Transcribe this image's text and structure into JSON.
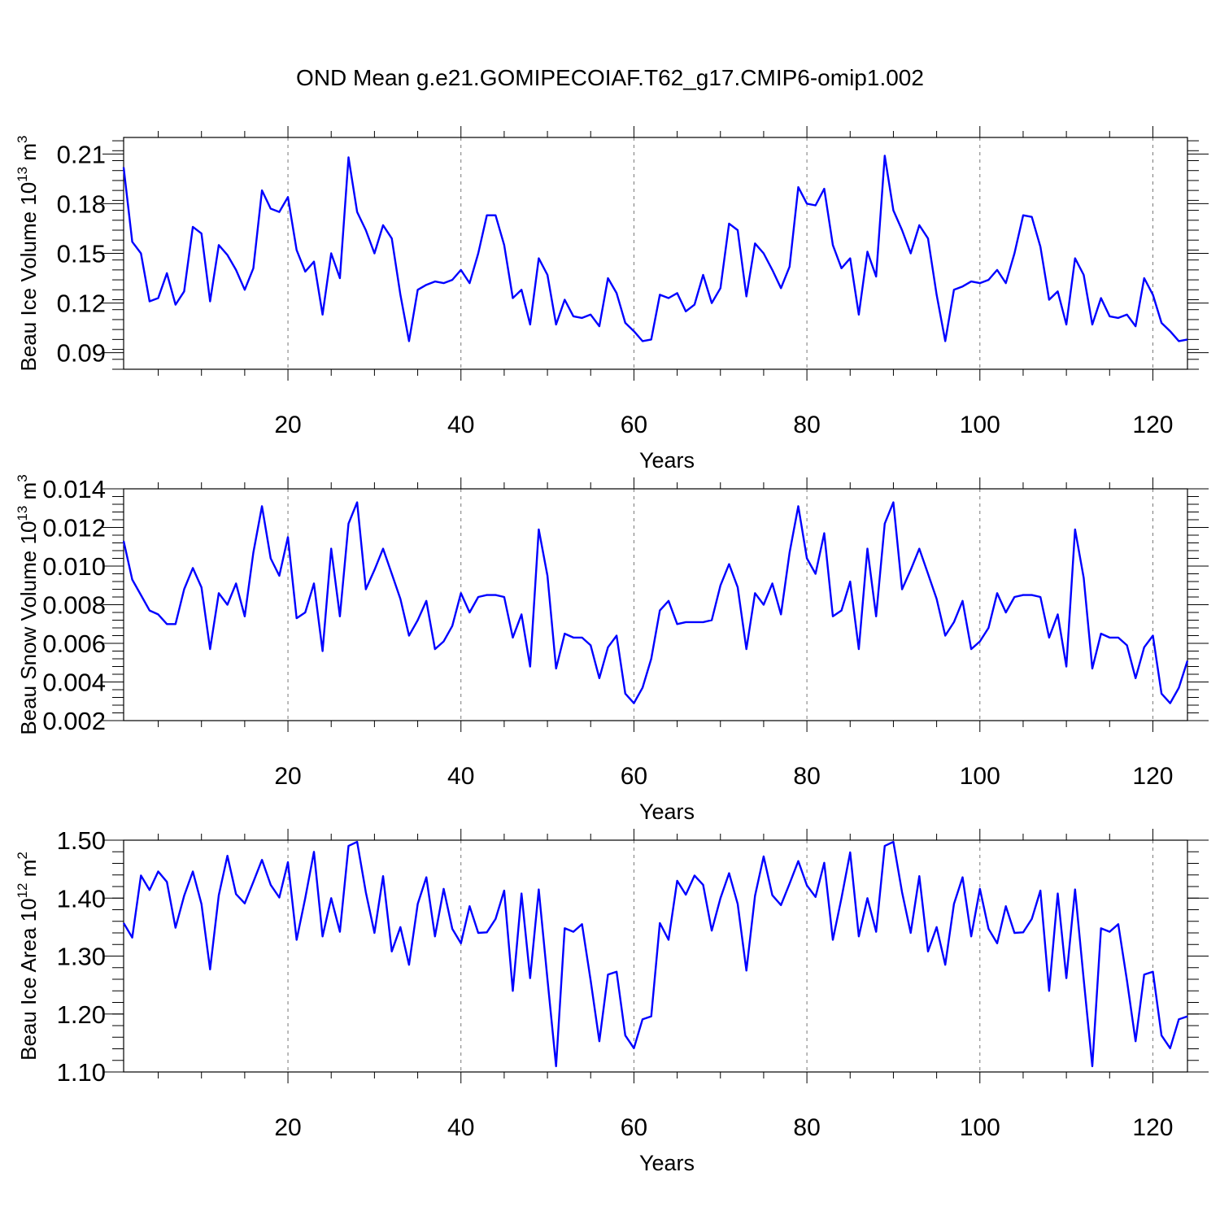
{
  "title": "OND Mean g.e21.GOMIPECOIAF.T62_g17.CMIP6-omip1.002",
  "line_color": "#0000ff",
  "chart_data": [
    {
      "type": "line",
      "name": "ice-volume",
      "ylabel_main": "Beau Ice Volume 10",
      "ylabel_exp": "13",
      "ylabel_unit": "m",
      "ylabel_unit_exp": "3",
      "xlabel": "Years",
      "xlim": [
        1,
        124
      ],
      "ylim": [
        0.08,
        0.22
      ],
      "xticks": [
        20,
        40,
        60,
        80,
        100,
        120
      ],
      "xtick_labels": [
        "20",
        "40",
        "60",
        "80",
        "100",
        "120"
      ],
      "yticks": [
        0.09,
        0.12,
        0.15,
        0.18,
        0.21
      ],
      "ytick_labels": [
        "0.09",
        "0.12",
        "0.15",
        "0.18",
        "0.21"
      ],
      "grid": "vertical dashed at major x ticks",
      "x_start": 1,
      "values": [
        0.202,
        0.157,
        0.15,
        0.121,
        0.123,
        0.138,
        0.119,
        0.127,
        0.166,
        0.162,
        0.121,
        0.155,
        0.149,
        0.14,
        0.128,
        0.141,
        0.188,
        0.177,
        0.175,
        0.184,
        0.152,
        0.139,
        0.145,
        0.113,
        0.15,
        0.135,
        0.208,
        0.175,
        0.164,
        0.15,
        0.167,
        0.159,
        0.125,
        0.097,
        0.128,
        0.131,
        0.133,
        0.132,
        0.134,
        0.14,
        0.132,
        0.15,
        0.173,
        0.173,
        0.155,
        0.123,
        0.128,
        0.107,
        0.147,
        0.137,
        0.107,
        0.122,
        0.112,
        0.111,
        0.113,
        0.106,
        0.135,
        0.126,
        0.108,
        0.103,
        0.097,
        0.098,
        0.125,
        0.123,
        0.126,
        0.115,
        0.119,
        0.137,
        0.12,
        0.129,
        0.168,
        0.164,
        0.124,
        0.156,
        0.15,
        0.14,
        0.129,
        0.142,
        0.19,
        0.18,
        0.179,
        0.189,
        0.155,
        0.141,
        0.147,
        0.113,
        0.151,
        0.136,
        0.209,
        0.176,
        0.164,
        0.15,
        0.167,
        0.159,
        0.125,
        0.097,
        0.128,
        0.13,
        0.133,
        0.132,
        0.134,
        0.14,
        0.132,
        0.15,
        0.173,
        0.172,
        0.154,
        0.122,
        0.127,
        0.107,
        0.147,
        0.137,
        0.107,
        0.123,
        0.112,
        0.111,
        0.113,
        0.106,
        0.135,
        0.125,
        0.108,
        0.103,
        0.097,
        0.098
      ]
    },
    {
      "type": "line",
      "name": "snow-volume",
      "ylabel_main": "Beau Snow Volume 10",
      "ylabel_exp": "13",
      "ylabel_unit": "m",
      "ylabel_unit_exp": "3",
      "xlabel": "Years",
      "xlim": [
        1,
        124
      ],
      "ylim": [
        0.002,
        0.014
      ],
      "xticks": [
        20,
        40,
        60,
        80,
        100,
        120
      ],
      "xtick_labels": [
        "20",
        "40",
        "60",
        "80",
        "100",
        "120"
      ],
      "yticks": [
        0.002,
        0.004,
        0.006,
        0.008,
        0.01,
        0.012,
        0.014
      ],
      "ytick_labels": [
        "0.002",
        "0.004",
        "0.006",
        "0.008",
        "0.010",
        "0.012",
        "0.014"
      ],
      "grid": "vertical dashed at major x ticks",
      "x_start": 1,
      "values": [
        0.0113,
        0.0093,
        0.0085,
        0.0077,
        0.0075,
        0.007,
        0.007,
        0.0088,
        0.0099,
        0.0089,
        0.0057,
        0.0086,
        0.008,
        0.0091,
        0.0074,
        0.0107,
        0.0131,
        0.0104,
        0.0095,
        0.0115,
        0.0073,
        0.0076,
        0.0091,
        0.0056,
        0.0109,
        0.0074,
        0.0122,
        0.0133,
        0.0088,
        0.0098,
        0.0109,
        0.0096,
        0.0083,
        0.0064,
        0.0072,
        0.0082,
        0.0057,
        0.0061,
        0.0069,
        0.0086,
        0.0076,
        0.0084,
        0.0085,
        0.0085,
        0.0084,
        0.0063,
        0.0075,
        0.0048,
        0.0119,
        0.0095,
        0.0047,
        0.0065,
        0.0063,
        0.0063,
        0.0059,
        0.0042,
        0.0058,
        0.0064,
        0.0034,
        0.0029,
        0.0037,
        0.0052,
        0.0077,
        0.0082,
        0.007,
        0.0071,
        0.0071,
        0.0071,
        0.0072,
        0.009,
        0.0101,
        0.0089,
        0.0057,
        0.0086,
        0.008,
        0.0091,
        0.0075,
        0.0107,
        0.0131,
        0.0104,
        0.0096,
        0.0117,
        0.0074,
        0.0077,
        0.0092,
        0.0057,
        0.0109,
        0.0074,
        0.0122,
        0.0133,
        0.0088,
        0.0098,
        0.0109,
        0.0096,
        0.0083,
        0.0064,
        0.0071,
        0.0082,
        0.0057,
        0.0061,
        0.0068,
        0.0086,
        0.0076,
        0.0084,
        0.0085,
        0.0085,
        0.0084,
        0.0063,
        0.0075,
        0.0048,
        0.0119,
        0.0094,
        0.0047,
        0.0065,
        0.0063,
        0.0063,
        0.0059,
        0.0042,
        0.0058,
        0.0064,
        0.0034,
        0.0029,
        0.0037,
        0.0051
      ]
    },
    {
      "type": "line",
      "name": "ice-area",
      "ylabel_main": "Beau Ice Area 10",
      "ylabel_exp": "12",
      "ylabel_unit": "m",
      "ylabel_unit_exp": "2",
      "xlabel": "Years",
      "xlim": [
        1,
        124
      ],
      "ylim": [
        1.1,
        1.5
      ],
      "xticks": [
        20,
        40,
        60,
        80,
        100,
        120
      ],
      "xtick_labels": [
        "20",
        "40",
        "60",
        "80",
        "100",
        "120"
      ],
      "yticks": [
        1.1,
        1.2,
        1.3,
        1.4,
        1.5
      ],
      "ytick_labels": [
        "1.10",
        "1.20",
        "1.30",
        "1.40",
        "1.50"
      ],
      "grid": "vertical dashed at major x ticks",
      "x_start": 1,
      "values": [
        1.357,
        1.332,
        1.439,
        1.414,
        1.446,
        1.428,
        1.349,
        1.404,
        1.446,
        1.39,
        1.277,
        1.405,
        1.473,
        1.407,
        1.391,
        1.428,
        1.466,
        1.423,
        1.401,
        1.462,
        1.328,
        1.4,
        1.48,
        1.334,
        1.4,
        1.342,
        1.49,
        1.497,
        1.41,
        1.34,
        1.438,
        1.308,
        1.35,
        1.285,
        1.39,
        1.436,
        1.334,
        1.416,
        1.347,
        1.322,
        1.386,
        1.34,
        1.341,
        1.364,
        1.413,
        1.24,
        1.408,
        1.262,
        1.415,
        1.26,
        1.11,
        1.348,
        1.342,
        1.355,
        1.258,
        1.153,
        1.268,
        1.273,
        1.163,
        1.141,
        1.191,
        1.196,
        1.357,
        1.328,
        1.43,
        1.406,
        1.439,
        1.423,
        1.344,
        1.4,
        1.443,
        1.39,
        1.275,
        1.404,
        1.472,
        1.405,
        1.388,
        1.425,
        1.464,
        1.422,
        1.402,
        1.461,
        1.328,
        1.4,
        1.479,
        1.334,
        1.4,
        1.342,
        1.49,
        1.497,
        1.41,
        1.34,
        1.438,
        1.308,
        1.35,
        1.285,
        1.39,
        1.436,
        1.334,
        1.416,
        1.347,
        1.322,
        1.386,
        1.34,
        1.341,
        1.364,
        1.413,
        1.24,
        1.408,
        1.262,
        1.415,
        1.26,
        1.11,
        1.348,
        1.342,
        1.355,
        1.258,
        1.153,
        1.268,
        1.273,
        1.163,
        1.141,
        1.191,
        1.196
      ]
    }
  ]
}
